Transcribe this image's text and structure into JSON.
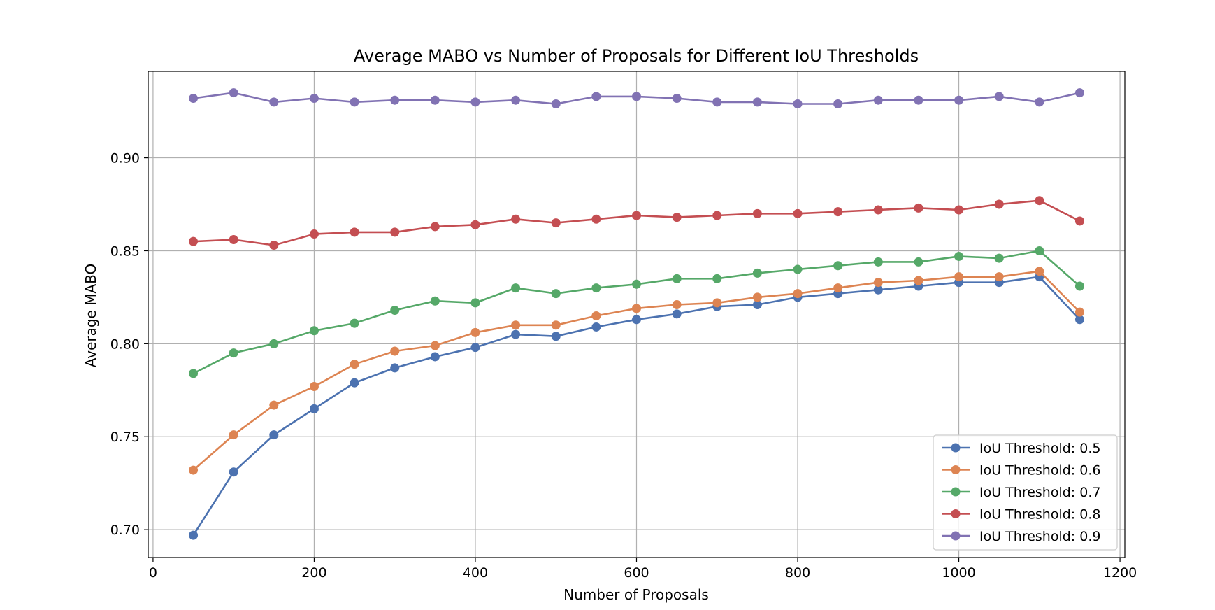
{
  "chart_data": {
    "type": "line",
    "title": "Average MABO vs Number of Proposals for Different IoU Thresholds",
    "xlabel": "Number of Proposals",
    "ylabel": "Average MABO",
    "xlim": [
      -6,
      1206
    ],
    "ylim": [
      0.685,
      0.9465
    ],
    "xticks": [
      0,
      200,
      400,
      600,
      800,
      1000,
      1200
    ],
    "xtick_labels": [
      "0",
      "200",
      "400",
      "600",
      "800",
      "1000",
      "1200"
    ],
    "yticks": [
      0.7,
      0.75,
      0.8,
      0.85,
      0.9
    ],
    "ytick_labels": [
      "0.70",
      "0.75",
      "0.80",
      "0.85",
      "0.90"
    ],
    "grid": true,
    "legend_position": "lower-right",
    "x": [
      50,
      100,
      150,
      200,
      250,
      300,
      350,
      400,
      450,
      500,
      550,
      600,
      650,
      700,
      750,
      800,
      850,
      900,
      950,
      1000,
      1050,
      1100,
      1150
    ],
    "series": [
      {
        "name": "IoU Threshold: 0.5",
        "color": "#4c72b0",
        "values": [
          0.697,
          0.731,
          0.751,
          0.765,
          0.779,
          0.787,
          0.793,
          0.798,
          0.805,
          0.804,
          0.809,
          0.813,
          0.816,
          0.82,
          0.821,
          0.825,
          0.827,
          0.829,
          0.831,
          0.833,
          0.833,
          0.836,
          0.813
        ]
      },
      {
        "name": "IoU Threshold: 0.6",
        "color": "#dd8452",
        "values": [
          0.732,
          0.751,
          0.767,
          0.777,
          0.789,
          0.796,
          0.799,
          0.806,
          0.81,
          0.81,
          0.815,
          0.819,
          0.821,
          0.822,
          0.825,
          0.827,
          0.83,
          0.833,
          0.834,
          0.836,
          0.836,
          0.839,
          0.817
        ]
      },
      {
        "name": "IoU Threshold: 0.7",
        "color": "#55a868",
        "values": [
          0.784,
          0.795,
          0.8,
          0.807,
          0.811,
          0.818,
          0.823,
          0.822,
          0.83,
          0.827,
          0.83,
          0.832,
          0.835,
          0.835,
          0.838,
          0.84,
          0.842,
          0.844,
          0.844,
          0.847,
          0.846,
          0.85,
          0.831
        ]
      },
      {
        "name": "IoU Threshold: 0.8",
        "color": "#c44e52",
        "values": [
          0.855,
          0.856,
          0.853,
          0.859,
          0.86,
          0.86,
          0.863,
          0.864,
          0.867,
          0.865,
          0.867,
          0.869,
          0.868,
          0.869,
          0.87,
          0.87,
          0.871,
          0.872,
          0.873,
          0.872,
          0.875,
          0.877,
          0.866
        ]
      },
      {
        "name": "IoU Threshold: 0.9",
        "color": "#8172b3",
        "values": [
          0.932,
          0.935,
          0.93,
          0.932,
          0.93,
          0.931,
          0.931,
          0.93,
          0.931,
          0.929,
          0.933,
          0.933,
          0.932,
          0.93,
          0.93,
          0.929,
          0.929,
          0.931,
          0.931,
          0.931,
          0.933,
          0.93,
          0.935
        ]
      }
    ]
  }
}
